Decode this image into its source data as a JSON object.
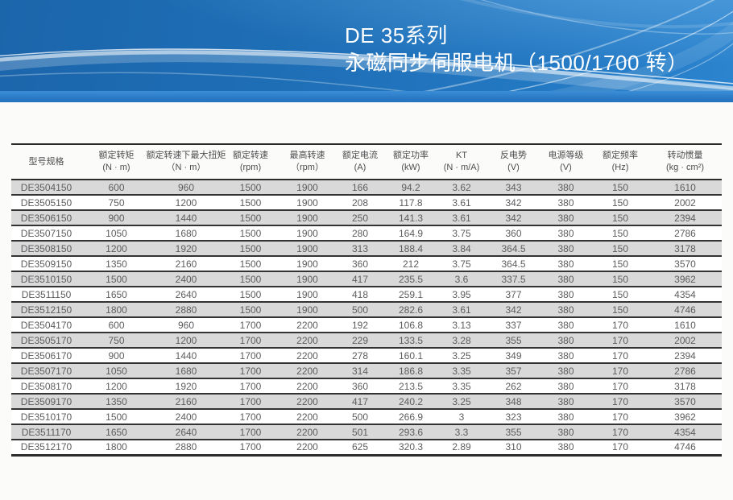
{
  "banner": {
    "title_line1": "DE 35系列",
    "title_line2": "永磁同步伺服电机（1500/1700 转）"
  },
  "colors": {
    "banner_blue_dark": "#1b65ab",
    "banner_blue_light": "#2c84ce",
    "banner_strip_blue": "#2a7ac6",
    "row_stripe_gray": "#d9d9d9",
    "table_line": "#2c2c2c",
    "table_text": "#5c5d5f"
  },
  "table": {
    "columns": [
      {
        "label": "型号规格",
        "unit": ""
      },
      {
        "label": "额定转矩",
        "unit": "(N · m)"
      },
      {
        "label": "额定转速下最大扭矩",
        "unit": "（N · m）"
      },
      {
        "label": "额定转速",
        "unit": "(rpm)"
      },
      {
        "label": "最高转速",
        "unit": "（rpm）"
      },
      {
        "label": "额定电流",
        "unit": "(A)"
      },
      {
        "label": "额定功率",
        "unit": "(kW)"
      },
      {
        "label": "KT",
        "unit": "(N · m/A)"
      },
      {
        "label": "反电势",
        "unit": "(V)"
      },
      {
        "label": "电源等级",
        "unit": "(V)"
      },
      {
        "label": "额定频率",
        "unit": "(Hz)"
      },
      {
        "label": "转动惯量",
        "unit": "(kg · cm²)"
      }
    ],
    "rows": [
      [
        "DE3504150",
        "600",
        "960",
        "1500",
        "1900",
        "166",
        "94.2",
        "3.62",
        "343",
        "380",
        "150",
        "1610"
      ],
      [
        "DE3505150",
        "750",
        "1200",
        "1500",
        "1900",
        "208",
        "117.8",
        "3.61",
        "342",
        "380",
        "150",
        "2002"
      ],
      [
        "DE3506150",
        "900",
        "1440",
        "1500",
        "1900",
        "250",
        "141.3",
        "3.61",
        "342",
        "380",
        "150",
        "2394"
      ],
      [
        "DE3507150",
        "1050",
        "1680",
        "1500",
        "1900",
        "280",
        "164.9",
        "3.75",
        "360",
        "380",
        "150",
        "2786"
      ],
      [
        "DE3508150",
        "1200",
        "1920",
        "1500",
        "1900",
        "313",
        "188.4",
        "3.84",
        "364.5",
        "380",
        "150",
        "3178"
      ],
      [
        "DE3509150",
        "1350",
        "2160",
        "1500",
        "1900",
        "360",
        "212",
        "3.75",
        "364.5",
        "380",
        "150",
        "3570"
      ],
      [
        "DE3510150",
        "1500",
        "2400",
        "1500",
        "1900",
        "417",
        "235.5",
        "3.6",
        "337.5",
        "380",
        "150",
        "3962"
      ],
      [
        "DE3511150",
        "1650",
        "2640",
        "1500",
        "1900",
        "418",
        "259.1",
        "3.95",
        "377",
        "380",
        "150",
        "4354"
      ],
      [
        "DE3512150",
        "1800",
        "2880",
        "1500",
        "1900",
        "500",
        "282.6",
        "3.61",
        "342",
        "380",
        "150",
        "4746"
      ],
      [
        "DE3504170",
        "600",
        "960",
        "1700",
        "2200",
        "192",
        "106.8",
        "3.13",
        "337",
        "380",
        "170",
        "1610"
      ],
      [
        "DE3505170",
        "750",
        "1200",
        "1700",
        "2200",
        "229",
        "133.5",
        "3.28",
        "355",
        "380",
        "170",
        "2002"
      ],
      [
        "DE3506170",
        "900",
        "1440",
        "1700",
        "2200",
        "278",
        "160.1",
        "3.25",
        "349",
        "380",
        "170",
        "2394"
      ],
      [
        "DE3507170",
        "1050",
        "1680",
        "1700",
        "2200",
        "314",
        "186.8",
        "3.35",
        "357",
        "380",
        "170",
        "2786"
      ],
      [
        "DE3508170",
        "1200",
        "1920",
        "1700",
        "2200",
        "360",
        "213.5",
        "3.35",
        "262",
        "380",
        "170",
        "3178"
      ],
      [
        "DE3509170",
        "1350",
        "2160",
        "1700",
        "2200",
        "417",
        "240.2",
        "3.25",
        "348",
        "380",
        "170",
        "3570"
      ],
      [
        "DE3510170",
        "1500",
        "2400",
        "1700",
        "2200",
        "500",
        "266.9",
        "3",
        "323",
        "380",
        "170",
        "3962"
      ],
      [
        "DE3511170",
        "1650",
        "2640",
        "1700",
        "2200",
        "501",
        "293.6",
        "3.3",
        "355",
        "380",
        "170",
        "4354"
      ],
      [
        "DE3512170",
        "1800",
        "2880",
        "1700",
        "2200",
        "625",
        "320.3",
        "2.89",
        "310",
        "380",
        "170",
        "4746"
      ]
    ]
  }
}
